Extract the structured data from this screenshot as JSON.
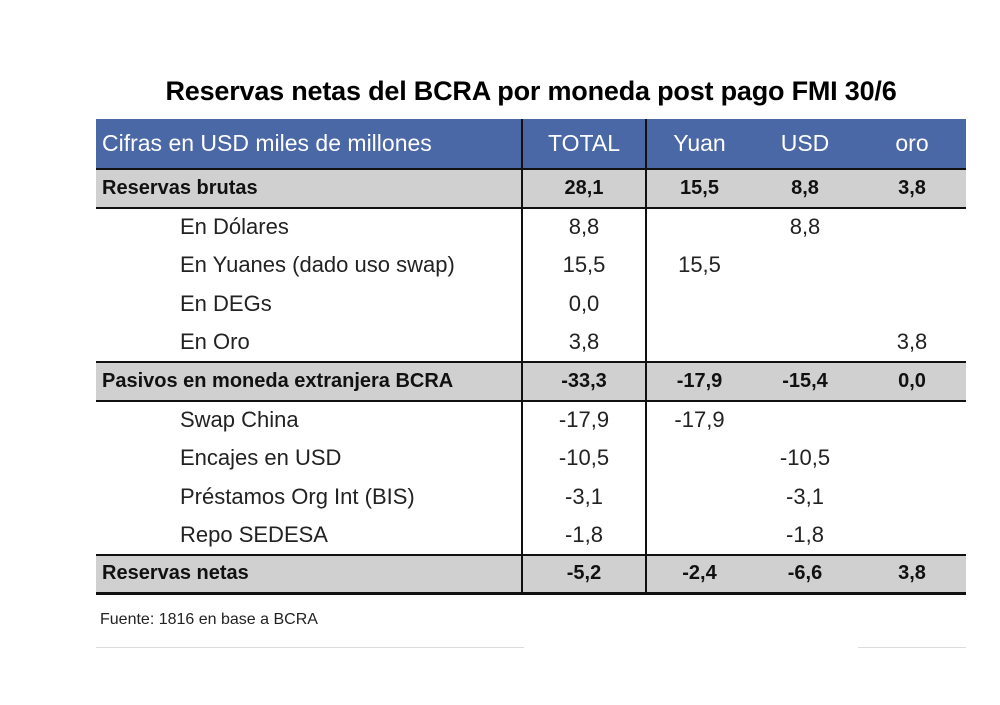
{
  "title": "Reservas netas del BCRA por moneda post pago FMI 30/6",
  "header": {
    "label": "Cifras en USD miles de millones",
    "total": "TOTAL",
    "yuan": "Yuan",
    "usd": "USD",
    "oro": "oro"
  },
  "rows": [
    {
      "label": "Reservas brutas",
      "total": "28,1",
      "yuan": "15,5",
      "usd": "8,8",
      "oro": "3,8"
    },
    {
      "label": "En Dólares",
      "total": "8,8",
      "yuan": "",
      "usd": "8,8",
      "oro": ""
    },
    {
      "label": "En Yuanes (dado uso swap)",
      "total": "15,5",
      "yuan": "15,5",
      "usd": "",
      "oro": ""
    },
    {
      "label": "En DEGs",
      "total": "0,0",
      "yuan": "",
      "usd": "",
      "oro": ""
    },
    {
      "label": "En Oro",
      "total": "3,8",
      "yuan": "",
      "usd": "",
      "oro": "3,8"
    },
    {
      "label": "Pasivos en moneda extranjera BCRA",
      "total": "-33,3",
      "yuan": "-17,9",
      "usd": "-15,4",
      "oro": "0,0"
    },
    {
      "label": "Swap China",
      "total": "-17,9",
      "yuan": "-17,9",
      "usd": "",
      "oro": ""
    },
    {
      "label": "Encajes en USD",
      "total": "-10,5",
      "yuan": "",
      "usd": "-10,5",
      "oro": ""
    },
    {
      "label": "Préstamos Org Int (BIS)",
      "total": "-3,1",
      "yuan": "",
      "usd": "-3,1",
      "oro": ""
    },
    {
      "label": "Repo SEDESA",
      "total": "-1,8",
      "yuan": "",
      "usd": "-1,8",
      "oro": ""
    },
    {
      "label": "Reservas netas",
      "total": "-5,2",
      "yuan": "-2,4",
      "usd": "-6,6",
      "oro": "3,8"
    }
  ],
  "source": "Fuente: 1816 en base a BCRA",
  "colors": {
    "header_bg": "#4a67a6",
    "section_bg": "#d0d0d0"
  }
}
